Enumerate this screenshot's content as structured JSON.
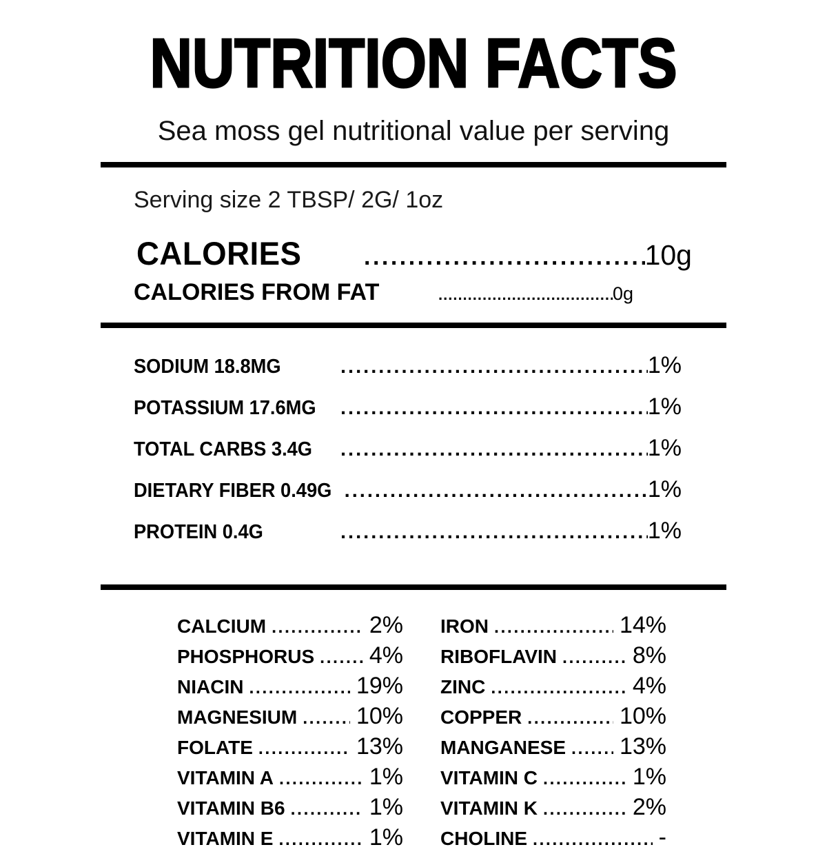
{
  "header": {
    "title": "NUTRITION FACTS",
    "subtitle": "Sea moss gel nutritional value per serving"
  },
  "serving": {
    "label": "Serving size 2 TBSP/ 2G/ 1oz"
  },
  "calories": {
    "label": "CALORIES",
    "value": "10g"
  },
  "calories_from_fat": {
    "label": "CALORIES FROM FAT",
    "value": "0g"
  },
  "main_rows": [
    {
      "label": "SODIUM 18.8MG",
      "value": "1%"
    },
    {
      "label": "POTASSIUM 17.6MG",
      "value": "1%"
    },
    {
      "label": "TOTAL CARBS 3.4G",
      "value": "1%"
    },
    {
      "label": "DIETARY FIBER 0.49G",
      "value": "1%"
    },
    {
      "label": "PROTEIN 0.4G",
      "value": "1%"
    }
  ],
  "micronutrients": {
    "left": [
      {
        "label": "CALCIUM",
        "value": "2%"
      },
      {
        "label": "PHOSPHORUS",
        "value": "4%"
      },
      {
        "label": "NIACIN",
        "value": "19%"
      },
      {
        "label": "MAGNESIUM",
        "value": "10%"
      },
      {
        "label": "FOLATE",
        "value": "13%"
      },
      {
        "label": "VITAMIN A",
        "value": "1%"
      },
      {
        "label": "VITAMIN B6",
        "value": "1%"
      },
      {
        "label": "VITAMIN E",
        "value": "1%"
      }
    ],
    "right": [
      {
        "label": "IRON",
        "value": "14%"
      },
      {
        "label": "RIBOFLAVIN",
        "value": "8%"
      },
      {
        "label": "ZINC",
        "value": "4%"
      },
      {
        "label": "COPPER",
        "value": "10%"
      },
      {
        "label": "MANGANESE",
        "value": "13%"
      },
      {
        "label": "VITAMIN C",
        "value": "1%"
      },
      {
        "label": "VITAMIN K",
        "value": "2%"
      },
      {
        "label": "CHOLINE",
        "value": "-"
      }
    ]
  },
  "colors": {
    "background": "#ffffff",
    "text": "#000000",
    "rule": "#000000"
  }
}
